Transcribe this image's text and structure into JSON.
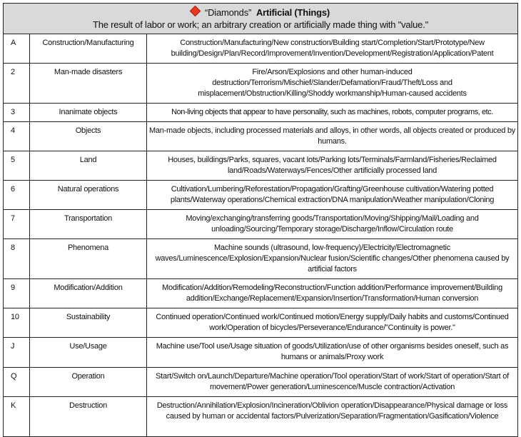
{
  "header": {
    "icon": "red-diamond-icon",
    "icon_color": "#e8391f",
    "suit_label": "“Diamonds”",
    "title": "Artificial (Things)",
    "subtitle": "The result of labor or work; an arbitrary creation or artificially made thing with \"value.\""
  },
  "rows": [
    {
      "key": "A",
      "name": "Construction/Manufacturing",
      "desc": "Construction/Manufacturing/New construction/Building start/Completion/Start/Prototype/New building/Design/Plan/Record/Improvement/Invention/Development/Registration/Application/Patent"
    },
    {
      "key": "2",
      "name": "Man-made disasters",
      "desc": "Fire/Arson/Explosions and other human-induced destruction/Terrorism/Mischief/Slander/Defamation/Fraud/Theft/Loss and misplacement/Obstruction/Killing/Shoddy workmanship/Human-caused accidents"
    },
    {
      "key": "3",
      "name": "Inanimate objects",
      "desc": "Non-living objects that appear to have personality, such as machines, robots, computer programs, etc."
    },
    {
      "key": "4",
      "name": "Objects",
      "desc": "Man-made objects, including processed materials and alloys, in other words, all objects created or produced by humans."
    },
    {
      "key": "5",
      "name": "Land",
      "desc": "Houses, buildings/Parks, squares, vacant lots/Parking lots/Terminals/Farmland/Fisheries/Reclaimed land/Roads/Waterways/Fences/Other artificially processed land"
    },
    {
      "key": "6",
      "name": "Natural operations",
      "desc": "Cultivation/Lumbering/Reforestation/Propagation/Grafting/Greenhouse cultivation/Watering potted plants/Waterway operations/Chemical extraction/DNA manipulation/Weather manipulation/Cloning"
    },
    {
      "key": "7",
      "name": "Transportation",
      "desc": "Moving/exchanging/transferring goods/Transportation/Moving/Shipping/Mail/Loading and unloading/Sourcing/Temporary storage/Discharge/Inflow/Circulation route"
    },
    {
      "key": "8",
      "name": "Phenomena",
      "desc": "Machine sounds (ultrasound, low-frequency)/Electricity/Electromagnetic waves/Luminescence/Explosion/Expansion/Nuclear fusion/Scientific changes/Other phenomena caused by artificial factors"
    },
    {
      "key": "9",
      "name": "Modification/Addition",
      "desc": "Modification/Addition/Remodeling/Reconstruction/Function addition/Performance improvement/Building addition/Exchange/Replacement/Expansion/Insertion/Transformation/Human conversion"
    },
    {
      "key": "10",
      "name": "Sustainability",
      "desc": "Continued operation/Continued work/Continued motion/Energy supply/Daily habits and customs/Continued work/Operation of bicycles/Perseverance/Endurance/\"Continuity is power.\""
    },
    {
      "key": "J",
      "name": "Use/Usage",
      "desc": "Machine use/Tool use/Usage situation of goods/Utilization/use of other organisms besides oneself, such as humans or animals/Proxy work"
    },
    {
      "key": "Q",
      "name": "Operation",
      "desc": "Start/Switch on/Launch/Departure/Machine operation/Tool operation/Start of work/Start of operation/Start of movement/Power generation/Luminescence/Muscle contraction/Activation"
    },
    {
      "key": "K",
      "name": "Destruction",
      "desc": "Destruction/Annihilation/Explosion/Incineration/Oblivion operation/Disappearance/Physical damage or loss caused by human or accidental factors/Pulverization/Separation/Fragmentation/Gasification/Violence"
    }
  ]
}
